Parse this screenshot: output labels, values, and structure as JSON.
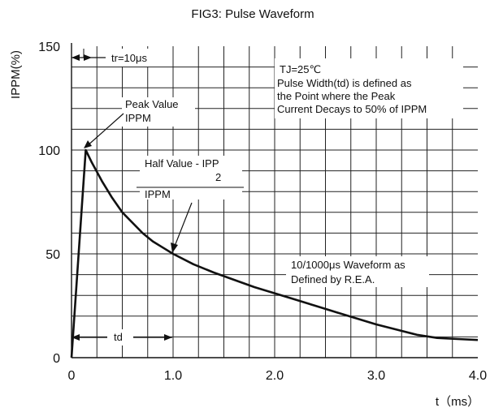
{
  "chart_data": {
    "type": "line",
    "title": "FIG3: Pulse Waveform",
    "ylabel": "IPPM(%)",
    "xlabel": "t（ms）",
    "xlim": [
      0,
      4.0
    ],
    "ylim": [
      0,
      150
    ],
    "x_ticks": [
      {
        "value": 0,
        "label": "0"
      },
      {
        "value": 1.0,
        "label": "1.0"
      },
      {
        "value": 2.0,
        "label": "2.0"
      },
      {
        "value": 3.0,
        "label": "3.0"
      },
      {
        "value": 4.0,
        "label": "4.0"
      }
    ],
    "y_ticks": [
      {
        "value": 0,
        "label": "0"
      },
      {
        "value": 50,
        "label": "50"
      },
      {
        "value": 100,
        "label": "100"
      },
      {
        "value": 150,
        "label": "150"
      }
    ],
    "grid": true,
    "series": [
      {
        "x": [
          0,
          0.14,
          0.2,
          0.3,
          0.4,
          0.5,
          0.6,
          0.7,
          0.8,
          0.9,
          1.0,
          1.2,
          1.4,
          1.6,
          1.8,
          2.0,
          2.2,
          2.4,
          2.6,
          2.8,
          3.0,
          3.2,
          3.4,
          3.6,
          3.8,
          4.0
        ],
        "y": [
          0,
          100,
          94,
          85,
          77,
          70,
          65,
          60,
          56,
          53,
          50,
          45,
          41,
          37.5,
          34,
          31,
          28,
          25,
          22,
          19,
          16,
          13.5,
          11,
          9.5,
          9,
          8.5
        ],
        "color": "#111111"
      }
    ],
    "annotations": {
      "tr": "tr=10μs",
      "tj_note": [
        "TJ=25℃",
        "Pulse Width(td) is defined as",
        "the Point where the Peak",
        "Current Decays to 50% of IPPM"
      ],
      "peak": [
        "Peak Value",
        "IPPM"
      ],
      "half": [
        "Half Value - IPP",
        "2",
        "IPPM"
      ],
      "waveform_note": [
        "10/1000μs Waveform as",
        "Defined by R.E.A."
      ],
      "td": "td"
    }
  }
}
